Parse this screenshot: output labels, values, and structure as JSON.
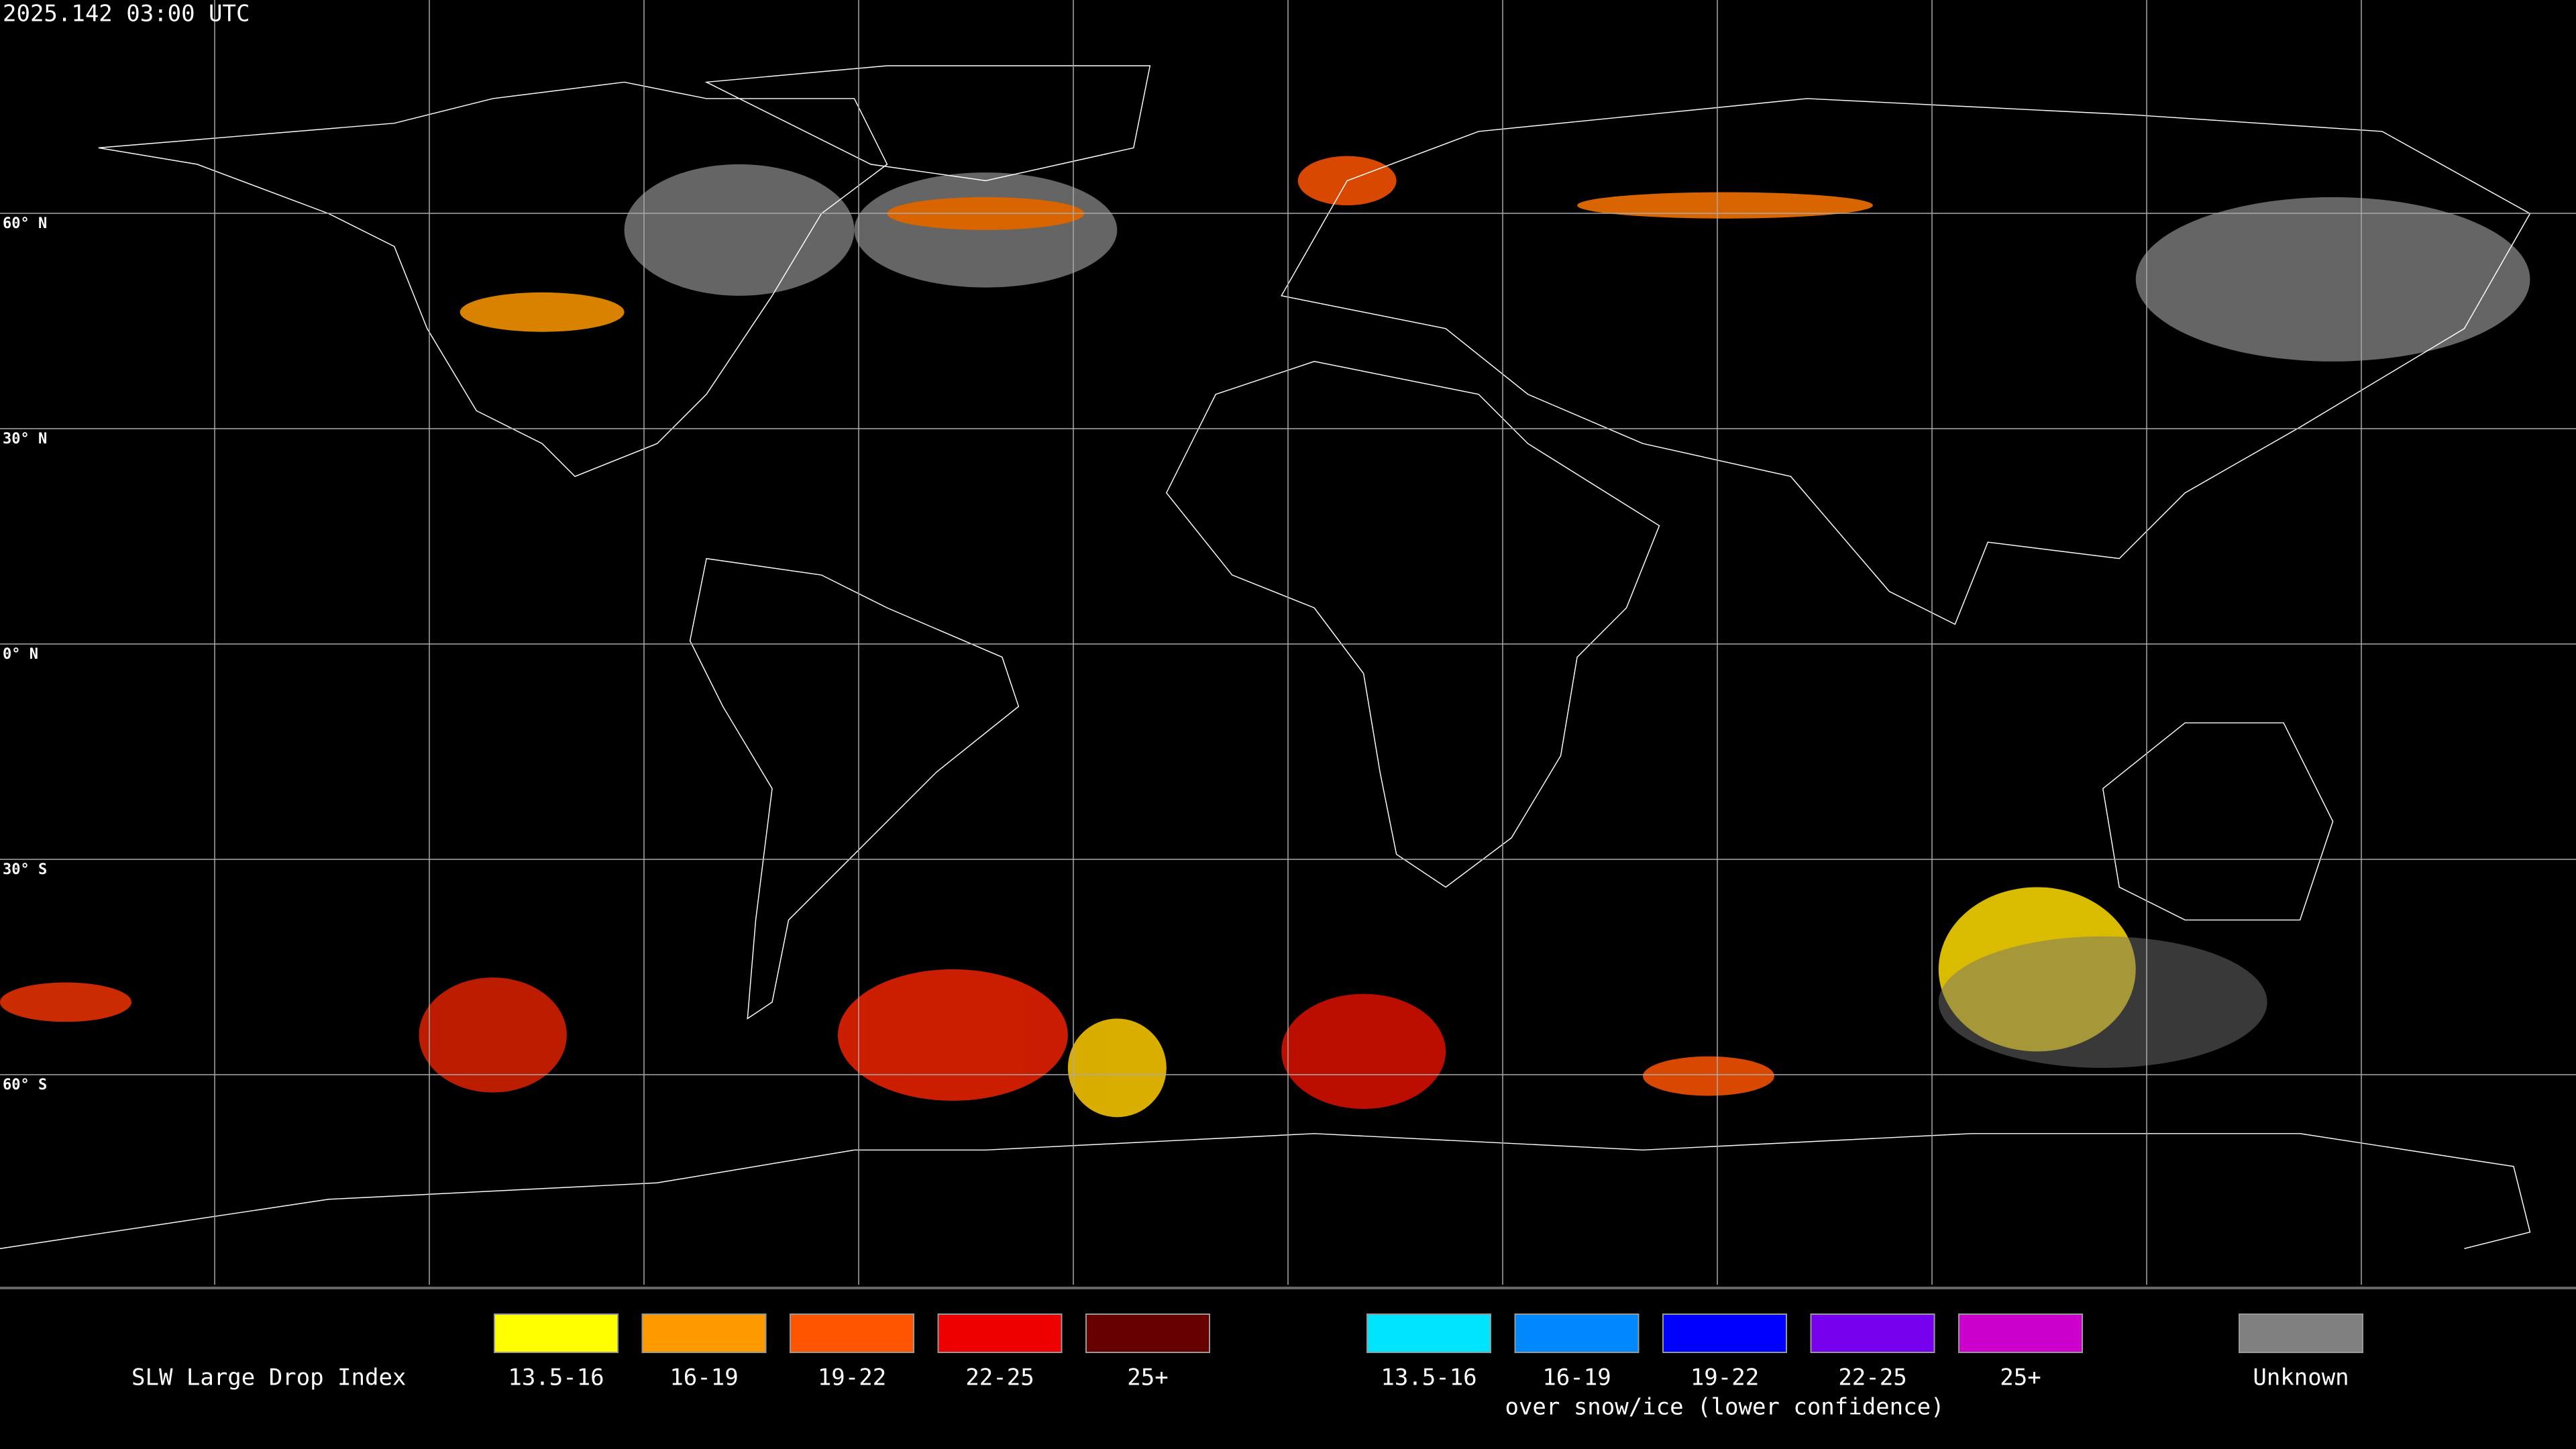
{
  "header": {
    "timestamp": "2025.142 03:00 UTC"
  },
  "map": {
    "latitude_labels": [
      "60° N",
      "30° N",
      "0° N",
      "30° S",
      "60° S"
    ]
  },
  "legend": {
    "title": "SLW Large Drop Index",
    "groups": [
      {
        "items": [
          {
            "label": "13.5-16",
            "color": "#ffff00"
          },
          {
            "label": "16-19",
            "color": "#ff9900"
          },
          {
            "label": "19-22",
            "color": "#ff5500"
          },
          {
            "label": "22-25",
            "color": "#ee0000"
          },
          {
            "label": "25+",
            "color": "#660000"
          }
        ]
      },
      {
        "items": [
          {
            "label": "13.5-16",
            "color": "#00e5ff"
          },
          {
            "label": "16-19",
            "color": "#0088ff"
          },
          {
            "label": "19-22",
            "color": "#0000ff"
          },
          {
            "label": "22-25",
            "color": "#7700ee"
          },
          {
            "label": "25+",
            "color": "#cc00cc"
          }
        ],
        "caption": "over snow/ice (lower confidence)"
      },
      {
        "items": [
          {
            "label": "Unknown",
            "color": "#808080"
          }
        ]
      }
    ]
  }
}
